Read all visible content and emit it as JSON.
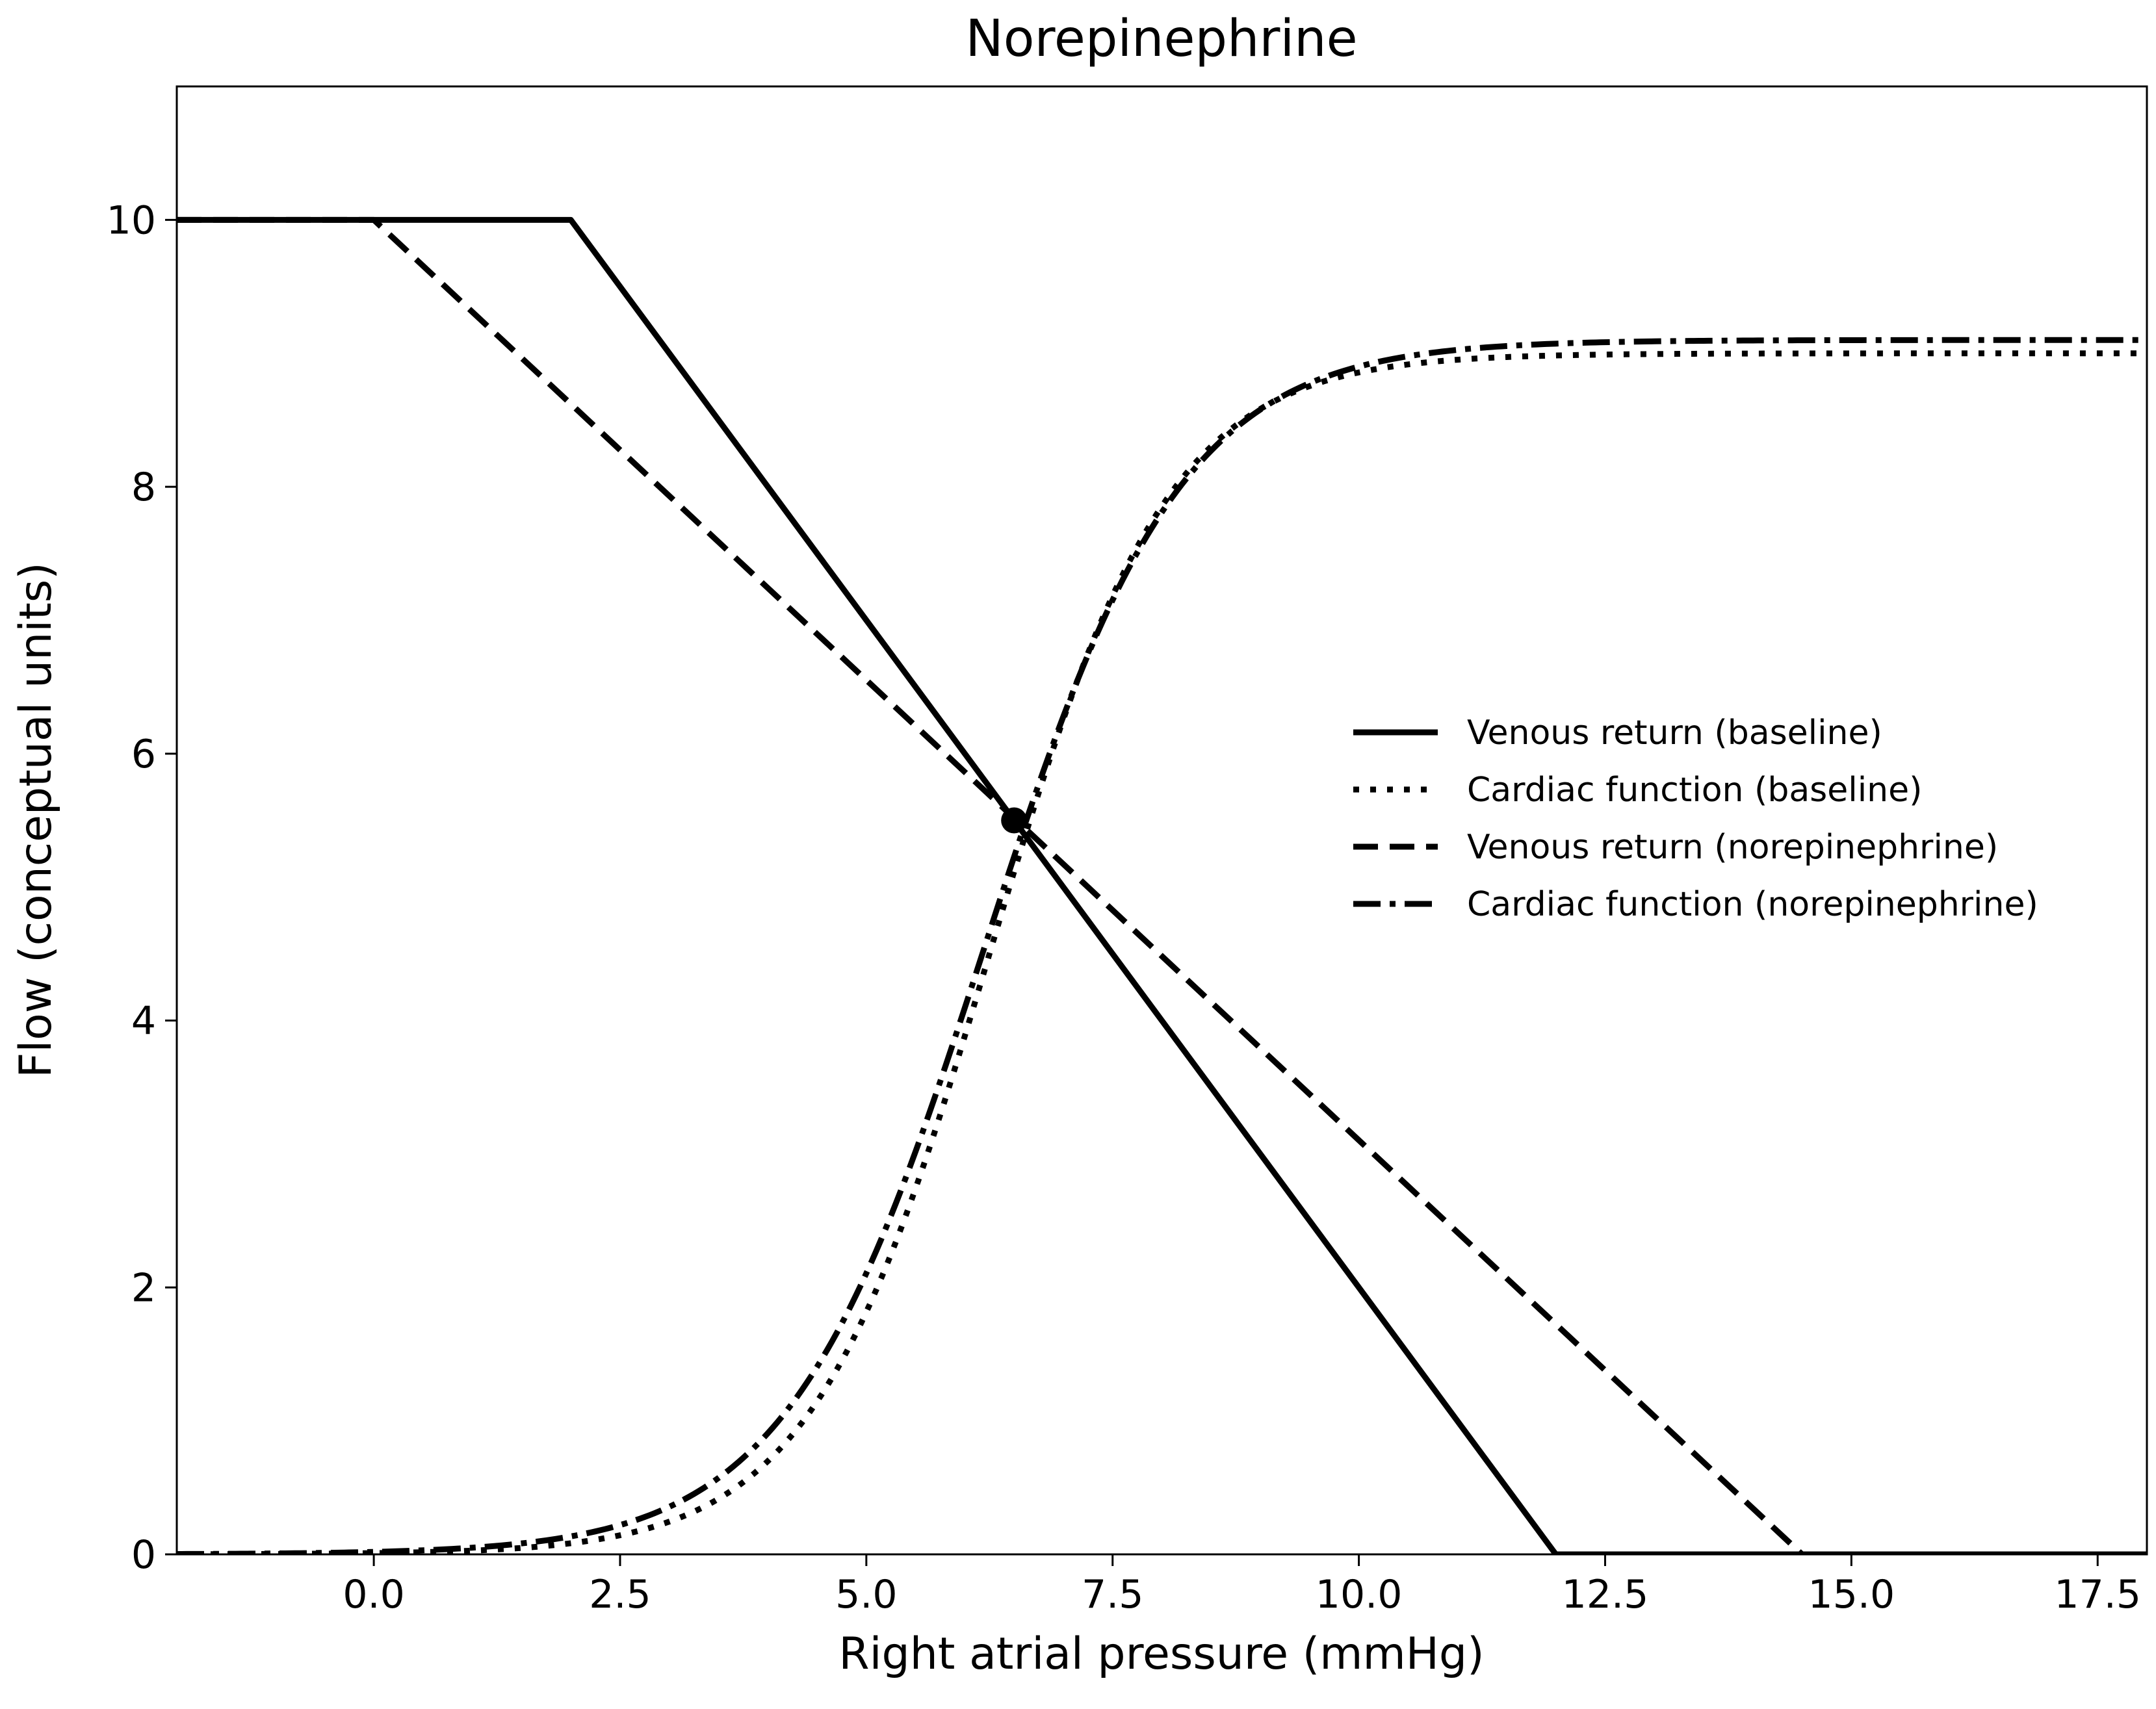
{
  "chart_data": {
    "type": "line",
    "title": "Norepinephrine",
    "xlabel": "Right atrial pressure (mmHg)",
    "ylabel": "Flow (conceptual units)",
    "xlim": [
      -2.0,
      18.0
    ],
    "ylim": [
      0,
      11
    ],
    "x_ticks": [
      "0.0",
      "2.5",
      "5.0",
      "7.5",
      "10.0",
      "12.5",
      "15.0",
      "17.5"
    ],
    "y_ticks": [
      "0",
      "2",
      "4",
      "6",
      "8",
      "10"
    ],
    "grid": false,
    "legend_position": "center-right",
    "series": [
      {
        "name": "Venous return (baseline)",
        "style": "solid",
        "color": "#000000",
        "points": [
          [
            -2.0,
            10
          ],
          [
            2.0,
            10
          ],
          [
            12.0,
            0
          ],
          [
            18.0,
            0
          ]
        ]
      },
      {
        "name": "Cardiac function (baseline)",
        "style": "dotted",
        "color": "#000000",
        "function": "logistic",
        "asymptote": 9.0,
        "midpoint": 6.25,
        "rate": 1.1
      },
      {
        "name": "Venous return (norepinephrine)",
        "style": "dashed",
        "color": "#000000",
        "points": [
          [
            -2.0,
            10
          ],
          [
            0.0,
            10
          ],
          [
            14.5,
            0
          ],
          [
            18.0,
            0
          ]
        ]
      },
      {
        "name": "Cardiac function (norepinephrine)",
        "style": "dashdot",
        "color": "#000000",
        "function": "logistic",
        "asymptote": 9.1,
        "midpoint": 6.2,
        "rate": 1.0
      }
    ],
    "intersection_point": {
      "x": 6.5,
      "y": 5.5
    }
  }
}
